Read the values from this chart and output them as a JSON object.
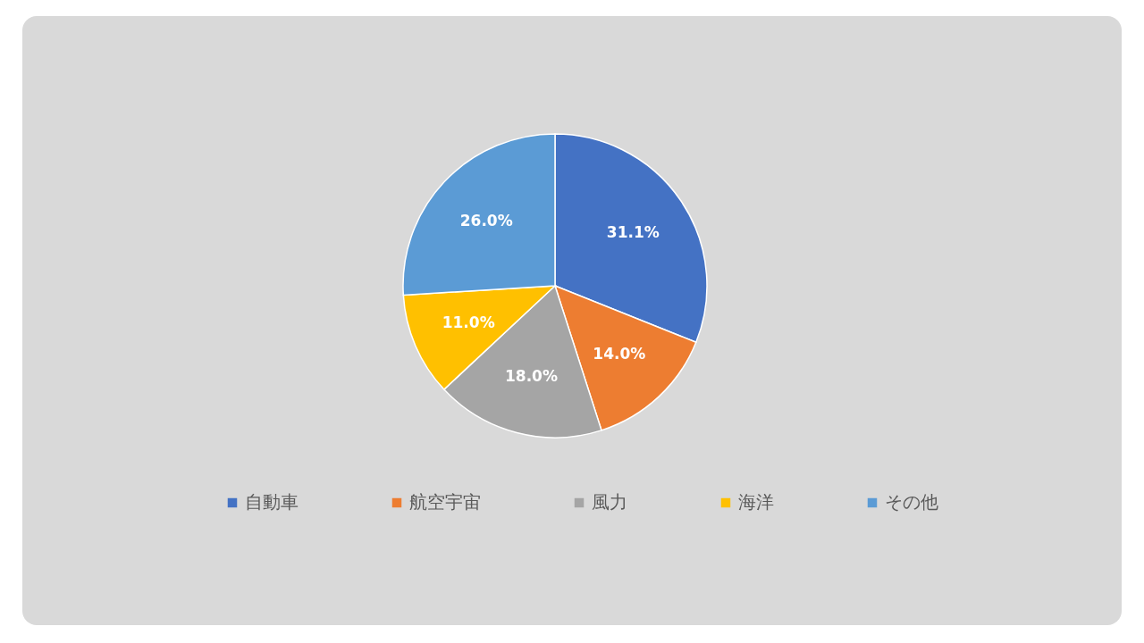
{
  "chart_data": {
    "type": "pie",
    "categories": [
      "自動車",
      "航空宇宙",
      "風力",
      "海洋",
      "その他"
    ],
    "values": [
      31.1,
      14.0,
      18.0,
      11.0,
      26.0
    ],
    "colors": [
      "#4472c4",
      "#ed7d31",
      "#a5a5a5",
      "#ffc000",
      "#5b9bd5"
    ],
    "value_labels": [
      "31.1%",
      "14.0%",
      "18.0%",
      "11.0%",
      "26.0%"
    ],
    "legend": "bottom"
  }
}
